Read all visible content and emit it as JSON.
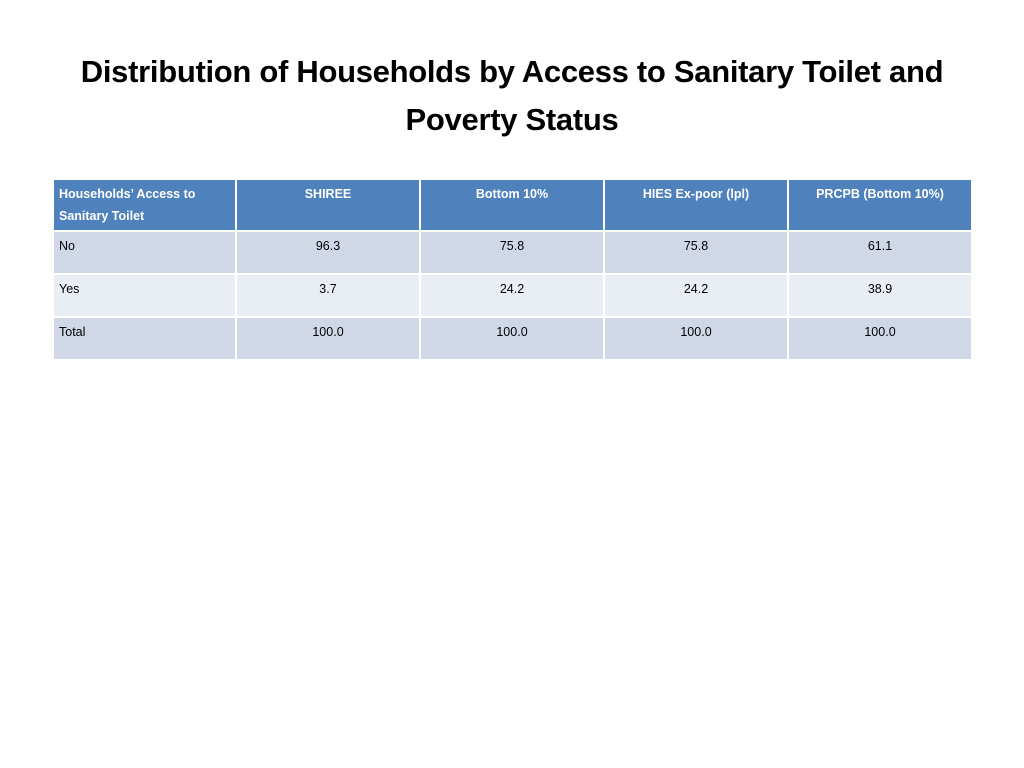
{
  "slide": {
    "title": "Distribution of Households by Access to Sanitary Toilet and Poverty Status"
  },
  "table": {
    "headers": [
      "Households’ Access to Sanitary Toilet",
      "SHIREE",
      "Bottom 10%",
      "HIES Ex-poor (lpl)",
      "PRCPB (Bottom 10%)"
    ],
    "rows": [
      [
        "No",
        "96.3",
        "75.8",
        "75.8",
        "61.1"
      ],
      [
        "Yes",
        "3.7",
        "24.2",
        "24.2",
        "38.9"
      ],
      [
        "Total",
        "100.0",
        "100.0",
        "100.0",
        "100.0"
      ]
    ]
  },
  "colors": {
    "header_bg": "#4f81bd",
    "row_odd_bg": "#d0d8e8",
    "row_even_bg": "#e9edf4"
  }
}
